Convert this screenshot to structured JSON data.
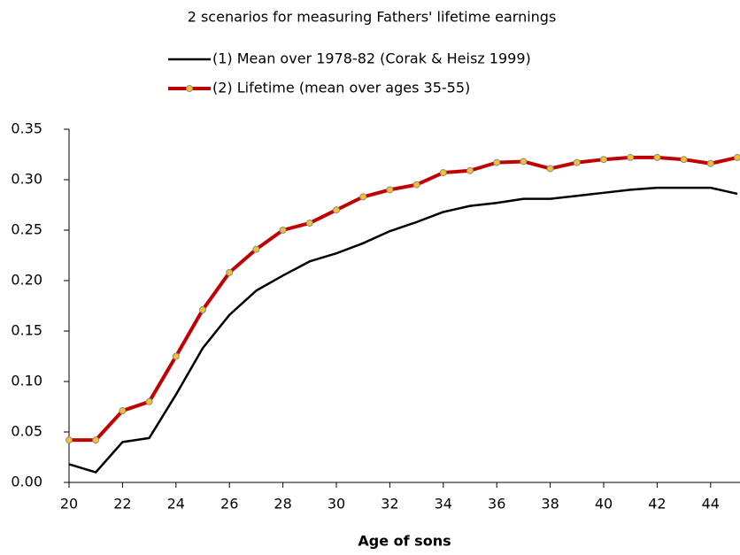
{
  "chart_data": {
    "type": "line",
    "title": "2 scenarios for measuring Fathers' lifetime earnings",
    "x_label": "Age of sons",
    "x": [
      20,
      21,
      22,
      23,
      24,
      25,
      26,
      27,
      28,
      29,
      30,
      31,
      32,
      33,
      34,
      35,
      36,
      37,
      38,
      39,
      40,
      41,
      42,
      43,
      44,
      45
    ],
    "series": [
      {
        "name": "(1) Mean over 1978-82 (Corak & Heisz 1999)",
        "color": "#000000",
        "values": [
          0.018,
          0.01,
          0.04,
          0.044,
          0.087,
          0.133,
          0.166,
          0.19,
          0.205,
          0.219,
          0.227,
          0.237,
          0.249,
          0.258,
          0.268,
          0.274,
          0.277,
          0.281,
          0.281,
          0.284,
          0.287,
          0.29,
          0.292,
          0.292,
          0.292,
          0.286
        ]
      },
      {
        "name": "(2) Lifetime (mean over ages 35-55)",
        "color": "#c00000",
        "marker_color": "#f2c12e",
        "values": [
          0.042,
          0.042,
          0.071,
          0.08,
          0.125,
          0.171,
          0.208,
          0.231,
          0.25,
          0.257,
          0.27,
          0.283,
          0.29,
          0.295,
          0.307,
          0.309,
          0.317,
          0.318,
          0.311,
          0.317,
          0.32,
          0.322,
          0.322,
          0.32,
          0.316,
          0.322
        ]
      }
    ],
    "xlim": [
      20,
      45
    ],
    "xticks": [
      20,
      22,
      24,
      26,
      28,
      30,
      32,
      34,
      36,
      38,
      40,
      42,
      44
    ],
    "ylim": [
      0,
      0.35
    ],
    "yticks": [
      {
        "value": 0,
        "label": "0.00"
      },
      {
        "value": 0.05,
        "label": "0.05"
      },
      {
        "value": 0.1,
        "label": "0.10"
      },
      {
        "value": 0.15,
        "label": "0.15"
      },
      {
        "value": 0.2,
        "label": "0.20"
      },
      {
        "value": 0.25,
        "label": "0.25"
      },
      {
        "value": 0.3,
        "label": "0.30"
      },
      {
        "value": 0.35,
        "label": "0.35"
      }
    ],
    "grid": false
  }
}
